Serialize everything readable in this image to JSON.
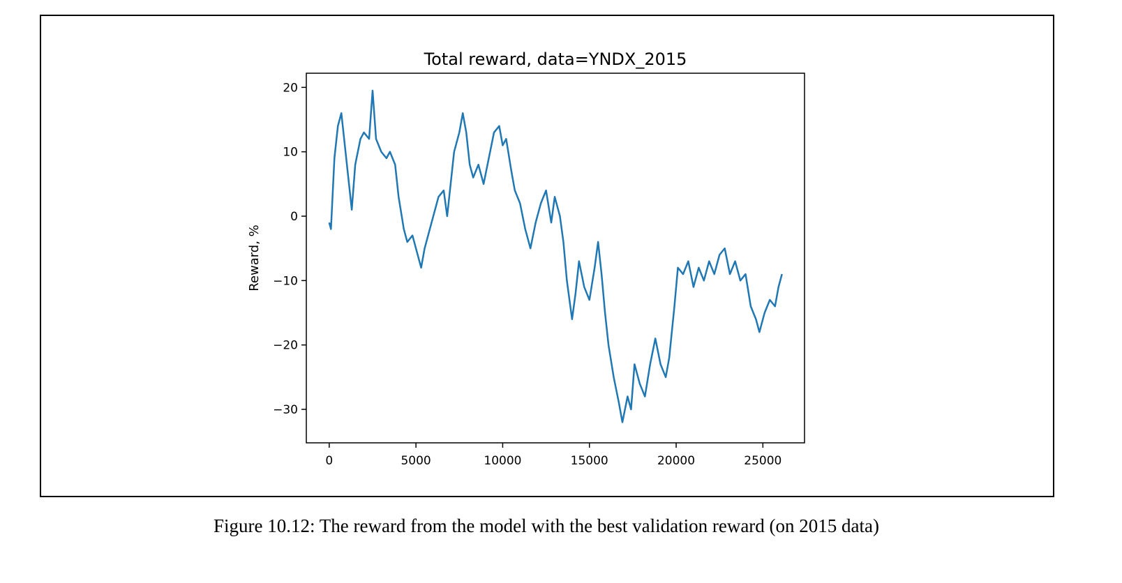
{
  "chart_data": {
    "type": "line",
    "title": "Total reward, data=YNDX_2015",
    "ylabel": "Reward, %",
    "x": [
      0,
      100,
      300,
      500,
      700,
      900,
      1100,
      1300,
      1500,
      1800,
      2000,
      2300,
      2500,
      2700,
      3000,
      3300,
      3500,
      3800,
      4000,
      4300,
      4500,
      4800,
      5000,
      5300,
      5500,
      5800,
      6000,
      6300,
      6600,
      6800,
      7000,
      7200,
      7500,
      7700,
      7900,
      8100,
      8300,
      8600,
      8900,
      9200,
      9500,
      9800,
      10000,
      10200,
      10500,
      10700,
      11000,
      11300,
      11600,
      11900,
      12200,
      12500,
      12800,
      13000,
      13300,
      13500,
      13700,
      14000,
      14200,
      14400,
      14700,
      15000,
      15300,
      15500,
      15700,
      15900,
      16100,
      16400,
      16700,
      16900,
      17200,
      17400,
      17600,
      17900,
      18200,
      18500,
      18800,
      19100,
      19400,
      19600,
      19900,
      20100,
      20400,
      20700,
      21000,
      21300,
      21600,
      21900,
      22200,
      22500,
      22800,
      23100,
      23400,
      23700,
      24000,
      24300,
      24600,
      24800,
      25100,
      25400,
      25700,
      25900,
      26100
    ],
    "series": [
      {
        "name": "Reward",
        "color": "#1f77b4",
        "values": [
          -1,
          -2,
          9,
          14,
          16,
          11,
          6,
          1,
          8,
          12,
          13,
          12,
          19.5,
          12,
          10,
          9,
          10,
          8,
          3,
          -2,
          -4,
          -3,
          -5,
          -8,
          -5,
          -2,
          0,
          3,
          4,
          0,
          5,
          10,
          13,
          16,
          13,
          8,
          6,
          8,
          5,
          9,
          13,
          14,
          11,
          12,
          7,
          4,
          2,
          -2,
          -5,
          -1,
          2,
          4,
          -1,
          3,
          0,
          -4,
          -10,
          -16,
          -12,
          -7,
          -11,
          -13,
          -8,
          -4,
          -9,
          -15,
          -20,
          -25,
          -29,
          -32,
          -28,
          -30,
          -23,
          -26,
          -28,
          -23,
          -19,
          -23,
          -25,
          -22,
          -14,
          -8,
          -9,
          -7,
          -11,
          -8,
          -10,
          -7,
          -9,
          -6,
          -5,
          -9,
          -7,
          -10,
          -9,
          -14,
          -16,
          -18,
          -15,
          -13,
          -14,
          -11,
          -9
        ]
      }
    ],
    "xlim": [
      -1320,
      27400
    ],
    "ylim": [
      -35.2,
      22.2
    ],
    "xticks": [
      0,
      5000,
      10000,
      15000,
      20000,
      25000
    ],
    "yticks": [
      {
        "value": -30,
        "label": "−30"
      },
      {
        "value": -20,
        "label": "−20"
      },
      {
        "value": -10,
        "label": "−10"
      },
      0,
      10,
      20
    ]
  },
  "caption": "Figure 10.12: The reward from the model with the best validation reward (on 2015 data)"
}
